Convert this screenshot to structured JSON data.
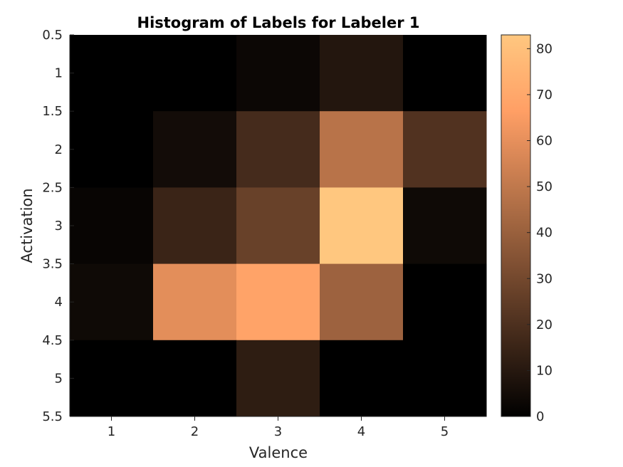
{
  "chart_data": {
    "type": "heatmap",
    "title": "Histogram of Labels for Labeler 1",
    "xlabel": "Valence",
    "ylabel": "Activation",
    "x_ticks": [
      "1",
      "2",
      "3",
      "4",
      "5"
    ],
    "y_ticks": [
      "0.5",
      "1",
      "1.5",
      "2",
      "2.5",
      "3",
      "3.5",
      "4",
      "4.5",
      "5",
      "5.5"
    ],
    "x_categories": [
      1,
      2,
      3,
      4,
      5
    ],
    "y_categories": [
      1,
      2,
      3,
      4,
      5
    ],
    "xlim": [
      0.5,
      5.5
    ],
    "ylim": [
      0.5,
      5.5
    ],
    "values": [
      [
        0,
        0,
        3,
        9,
        0
      ],
      [
        0,
        5,
        18,
        48,
        21
      ],
      [
        2,
        15,
        27,
        83,
        4
      ],
      [
        4,
        59,
        68,
        41,
        0
      ],
      [
        0,
        0,
        12,
        0,
        0
      ]
    ],
    "colorbar": {
      "colormap": "copper",
      "clim": [
        0,
        83
      ],
      "ticks": [
        "0",
        "10",
        "20",
        "30",
        "40",
        "50",
        "60",
        "70",
        "80"
      ]
    }
  }
}
